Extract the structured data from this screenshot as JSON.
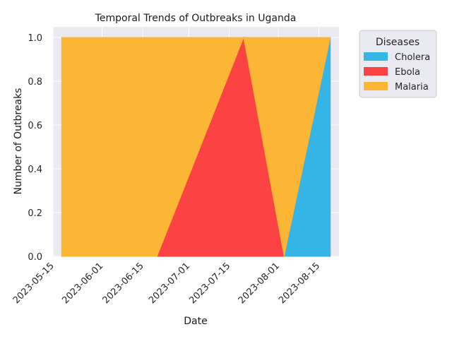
{
  "chart_data": {
    "type": "area",
    "stacked": true,
    "title": "Temporal Trends of Outbreaks in Uganda",
    "xlabel": "Date",
    "ylabel": "Number of Outbreaks",
    "x": [
      "2023-05-18",
      "2023-06-20",
      "2023-07-20",
      "2023-08-03",
      "2023-08-19"
    ],
    "xlim": [
      "2023-05-15",
      "2023-08-22"
    ],
    "x_ticks": [
      "2023-05-15",
      "2023-06-01",
      "2023-06-15",
      "2023-07-01",
      "2023-07-15",
      "2023-08-01",
      "2023-08-15"
    ],
    "ylim": [
      0,
      1.0
    ],
    "y_ticks": [
      0.0,
      0.2,
      0.4,
      0.6,
      0.8,
      1.0
    ],
    "y_tick_labels": [
      "0.0",
      "0.2",
      "0.4",
      "0.6",
      "0.8",
      "1.0"
    ],
    "series": [
      {
        "name": "Cholera",
        "color": "#35b5e5",
        "values": [
          0,
          0,
          0,
          0,
          1
        ]
      },
      {
        "name": "Ebola",
        "color": "#fb4343",
        "values": [
          0,
          0,
          1,
          0,
          0
        ]
      },
      {
        "name": "Malaria",
        "color": "#fcb635",
        "values": [
          1,
          1,
          0,
          1,
          0
        ]
      }
    ],
    "grid": true,
    "legend": {
      "title": "Diseases",
      "placement": "outside-right-top"
    },
    "background": "#eaeaf2"
  }
}
